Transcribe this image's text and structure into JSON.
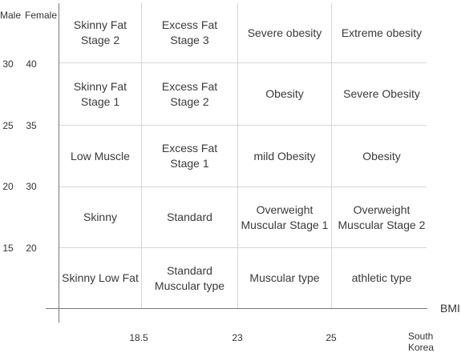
{
  "headers": {
    "male": "Male",
    "female": "Female"
  },
  "y_ticks": [
    {
      "male": "30",
      "female": "40"
    },
    {
      "male": "25",
      "female": "35"
    },
    {
      "male": "20",
      "female": "30"
    },
    {
      "male": "15",
      "female": "20"
    }
  ],
  "x_ticks": [
    "18.5",
    "23",
    "25"
  ],
  "x_axis_label": "BMI",
  "region_label": "South Korea",
  "grid": [
    [
      "Skinny Fat\nStage 2",
      "Excess Fat\nStage 3",
      "Severe obesity",
      "Extreme obesity"
    ],
    [
      "Skinny Fat\nStage 1",
      "Excess Fat\nStage 2",
      "Obesity",
      "Severe Obesity"
    ],
    [
      "Low Muscle",
      "Excess Fat\nStage 1",
      "mild Obesity",
      "Obesity"
    ],
    [
      "Skinny",
      "Standard",
      "Overweight\nMuscular Stage 1",
      "Overweight\nMuscular Stage 2"
    ],
    [
      "Skinny Low Fat",
      "Standard\nMuscular type",
      "Muscular type",
      "athletic type"
    ]
  ]
}
